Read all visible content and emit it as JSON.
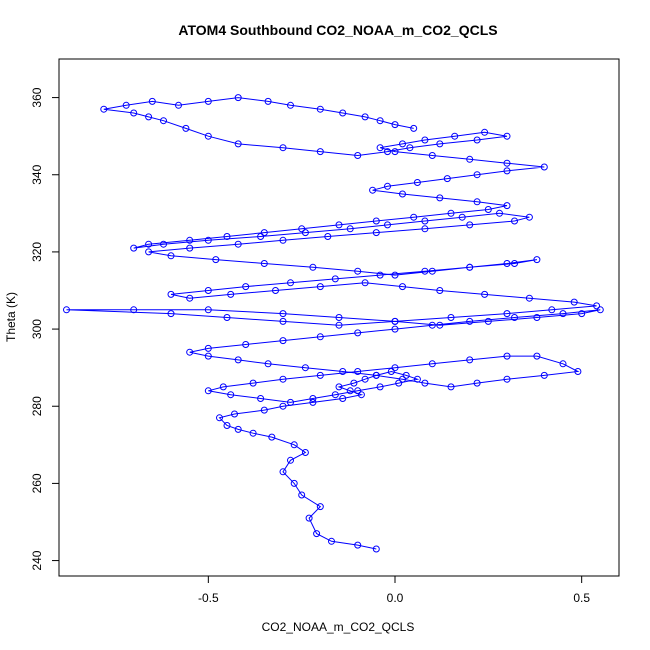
{
  "chart_data": {
    "type": "scatter",
    "title": "ATOM4 Southbound CO2_NOAA_m_CO2_QCLS",
    "xlabel": "CO2_NOAA_m_CO2_QCLS",
    "ylabel": "Theta (K)",
    "xlim": [
      -0.9,
      0.6
    ],
    "ylim": [
      236,
      370
    ],
    "xticks": [
      -0.5,
      0.0,
      0.5
    ],
    "xtick_labels": [
      "-0.5",
      "0.0",
      "0.5"
    ],
    "yticks": [
      240,
      260,
      280,
      300,
      320,
      340,
      360
    ],
    "ytick_labels": [
      "240",
      "260",
      "280",
      "300",
      "320",
      "340",
      "360"
    ],
    "grid": false,
    "style": "points connected by lines (type='o')",
    "color": "#0000ff",
    "series": [
      {
        "name": "CO2_NOAA_m_CO2_QCLS",
        "x": [
          -0.05,
          -0.1,
          -0.17,
          -0.21,
          -0.23,
          -0.2,
          -0.25,
          -0.27,
          -0.3,
          -0.28,
          -0.24,
          -0.27,
          -0.33,
          -0.38,
          -0.42,
          -0.45,
          -0.47,
          -0.43,
          -0.35,
          -0.3,
          -0.22,
          -0.14,
          -0.09,
          -0.12,
          -0.15,
          -0.11,
          -0.08,
          -0.05,
          -0.01,
          0.03,
          0.06,
          0.01,
          -0.04,
          -0.1,
          -0.16,
          -0.22,
          -0.28,
          -0.36,
          -0.44,
          -0.5,
          -0.46,
          -0.38,
          -0.3,
          -0.2,
          -0.1,
          0.0,
          0.1,
          0.2,
          0.3,
          0.38,
          0.45,
          0.49,
          0.4,
          0.3,
          0.22,
          0.15,
          0.08,
          0.02,
          -0.05,
          -0.14,
          -0.24,
          -0.34,
          -0.42,
          -0.5,
          -0.55,
          -0.5,
          -0.4,
          -0.3,
          -0.2,
          -0.1,
          0.0,
          0.1,
          0.2,
          0.32,
          0.45,
          0.55,
          0.5,
          0.38,
          0.25,
          0.12,
          0.0,
          -0.15,
          -0.3,
          -0.5,
          -0.7,
          -0.88,
          -0.6,
          -0.45,
          -0.3,
          -0.15,
          0.0,
          0.15,
          0.3,
          0.42,
          0.54,
          0.48,
          0.36,
          0.24,
          0.12,
          0.02,
          -0.08,
          -0.2,
          -0.32,
          -0.44,
          -0.55,
          -0.6,
          -0.5,
          -0.4,
          -0.28,
          -0.16,
          -0.04,
          0.08,
          0.2,
          0.32,
          0.38,
          0.3,
          0.2,
          0.1,
          0.0,
          -0.1,
          -0.22,
          -0.35,
          -0.48,
          -0.6,
          -0.66,
          -0.55,
          -0.42,
          -0.3,
          -0.18,
          -0.05,
          0.08,
          0.2,
          0.32,
          0.36,
          0.28,
          0.18,
          0.08,
          -0.02,
          -0.12,
          -0.24,
          -0.36,
          -0.5,
          -0.62,
          -0.7,
          -0.66,
          -0.55,
          -0.45,
          -0.35,
          -0.25,
          -0.15,
          -0.05,
          0.05,
          0.15,
          0.25,
          0.3,
          0.22,
          0.12,
          0.02,
          -0.06,
          -0.02,
          0.06,
          0.14,
          0.22,
          0.3,
          0.4,
          0.3,
          0.2,
          0.1,
          0.0,
          -0.04,
          0.02,
          0.08,
          0.16,
          0.24,
          0.3,
          0.22,
          0.12,
          0.04,
          -0.02,
          -0.1,
          -0.2,
          -0.3,
          -0.42,
          -0.5,
          -0.56,
          -0.62,
          -0.66,
          -0.7,
          -0.78,
          -0.72,
          -0.65,
          -0.58,
          -0.5,
          -0.42,
          -0.34,
          -0.28,
          -0.2,
          -0.14,
          -0.08,
          -0.04,
          0.0,
          0.05
        ],
        "y": [
          243,
          244,
          245,
          247,
          251,
          254,
          257,
          260,
          263,
          266,
          268,
          270,
          272,
          273,
          274,
          275,
          277,
          278,
          279,
          280,
          281,
          282,
          283,
          284,
          285,
          286,
          287,
          288,
          289,
          288,
          287,
          286,
          285,
          284,
          283,
          282,
          281,
          282,
          283,
          284,
          285,
          286,
          287,
          288,
          289,
          290,
          291,
          292,
          293,
          293,
          291,
          289,
          288,
          287,
          286,
          285,
          286,
          287,
          288,
          289,
          290,
          291,
          292,
          293,
          294,
          295,
          296,
          297,
          298,
          299,
          300,
          301,
          302,
          303,
          304,
          305,
          304,
          303,
          302,
          301,
          302,
          303,
          304,
          305,
          305,
          305,
          304,
          303,
          302,
          301,
          302,
          303,
          304,
          305,
          306,
          307,
          308,
          309,
          310,
          311,
          312,
          311,
          310,
          309,
          308,
          309,
          310,
          311,
          312,
          313,
          314,
          315,
          316,
          317,
          318,
          317,
          316,
          315,
          314,
          315,
          316,
          317,
          318,
          319,
          320,
          321,
          322,
          323,
          324,
          325,
          326,
          327,
          328,
          329,
          330,
          329,
          328,
          327,
          326,
          325,
          324,
          323,
          322,
          321,
          322,
          323,
          324,
          325,
          326,
          327,
          328,
          329,
          330,
          331,
          332,
          333,
          334,
          335,
          336,
          337,
          338,
          339,
          340,
          341,
          342,
          343,
          344,
          345,
          346,
          347,
          348,
          349,
          350,
          351,
          350,
          349,
          348,
          347,
          346,
          345,
          346,
          347,
          348,
          350,
          352,
          354,
          355,
          356,
          357,
          358,
          359,
          358,
          359,
          360,
          359,
          358,
          357,
          356,
          355,
          354,
          353,
          352
        ]
      }
    ]
  }
}
